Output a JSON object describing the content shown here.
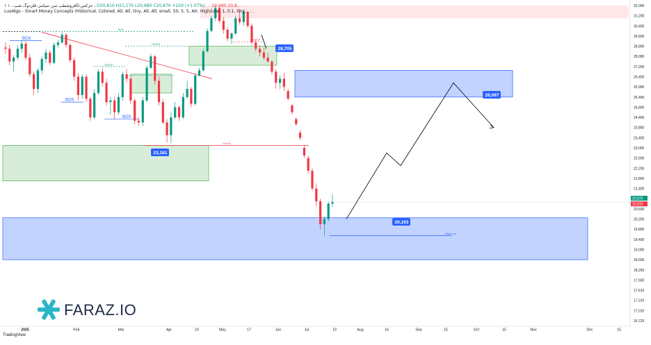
{
  "header": {
    "line1_prefix": "۱ فروشطپ سن سپامی فلزدوگ شپ ، ۱D،جزکس ،",
    "line1_values": "O20,810  H21,170  L20,680  C20,870  +220 (+1.07%)",
    "line2": "LuxAlgo - Smart Money Concepts (Historical, Colored, All, All, tiny, All, All, small, 50, 5, 5, Atr, High/Low, 1, 0.1, tiny, . . .",
    "inline_values": "20,680  20,8..."
  },
  "brand": {
    "name": "FARAZ.IO",
    "tradingview": "TradingView"
  },
  "colors": {
    "up": "#089981",
    "down": "#f23645",
    "demand_zone": "rgba(76,175,80,0.22)",
    "supply_zone": "rgba(41,98,255,0.28)",
    "premium_zone": "rgba(242,54,69,0.12)",
    "label_blue": "#2962ff"
  },
  "chart_data": {
    "type": "candlestick",
    "title": "",
    "xlabel": "",
    "ylabel": "",
    "ylim": [
      16720,
      32000
    ],
    "grid": false,
    "y_ticks": [
      32000,
      31200,
      30400,
      29600,
      28800,
      28000,
      27200,
      26400,
      25900,
      25400,
      24800,
      24400,
      23800,
      23400,
      23000,
      22600,
      22200,
      21800,
      21400,
      21000,
      20600,
      20200,
      19800,
      19400,
      19000,
      18600,
      18250,
      17930,
      17610,
      17310,
      17010,
      16720
    ],
    "y_tick_labels": [
      "32,000",
      "31,200",
      "30,400",
      "29,600",
      "28,800",
      "28,000",
      "27,200",
      "26,400",
      "25,900",
      "25,400",
      "24,800",
      "24,400",
      "23,800",
      "23,400",
      "23,000",
      "22,600",
      "22,200",
      "21,800",
      "21,400",
      "21,000",
      "20,600",
      "20,200",
      "19,800",
      "19,400",
      "19,000",
      "18,600",
      "18,250",
      "17,930",
      "17,610",
      "17,310",
      "17,010",
      "16,720"
    ],
    "x_ticks": [
      "2025",
      "Feb",
      "Mar",
      "Apr",
      "19",
      "May",
      "17",
      "Jun",
      "Jul",
      "19",
      "Aug",
      "16",
      "Sep",
      "15",
      "Oct",
      "15",
      "Nov",
      "Dec",
      "15"
    ],
    "current_price_tags": [
      "20,870",
      "20,810"
    ],
    "candles": [
      [
        28700,
        29100,
        28200,
        28600
      ],
      [
        28600,
        28900,
        27300,
        27600
      ],
      [
        27600,
        28100,
        26800,
        27900
      ],
      [
        27900,
        28900,
        27700,
        28600
      ],
      [
        28600,
        29300,
        28300,
        29000
      ],
      [
        29000,
        29200,
        27700,
        27900
      ],
      [
        27900,
        28200,
        26400,
        26600
      ],
      [
        26600,
        26800,
        25500,
        25800
      ],
      [
        25800,
        27100,
        25600,
        26900
      ],
      [
        26900,
        28000,
        26600,
        27800
      ],
      [
        27800,
        28600,
        27500,
        28300
      ],
      [
        28300,
        28500,
        27300,
        27500
      ],
      [
        27500,
        29100,
        27400,
        28900
      ],
      [
        28900,
        29300,
        28700,
        29100
      ],
      [
        29100,
        29900,
        29000,
        29700
      ],
      [
        29700,
        29800,
        28700,
        28900
      ],
      [
        28900,
        29000,
        27500,
        27700
      ],
      [
        27700,
        27900,
        26200,
        26400
      ],
      [
        26400,
        26700,
        25200,
        25500
      ],
      [
        25500,
        26600,
        25300,
        26400
      ],
      [
        26400,
        26600,
        25100,
        25300
      ],
      [
        25300,
        25400,
        24200,
        24400
      ],
      [
        24400,
        25800,
        24300,
        25600
      ],
      [
        25600,
        27000,
        25500,
        26800
      ],
      [
        26800,
        27100,
        25900,
        26100
      ],
      [
        26100,
        26300,
        24900,
        25100
      ],
      [
        25100,
        25400,
        24500,
        25200
      ],
      [
        25200,
        25400,
        24300,
        24600
      ],
      [
        24600,
        25600,
        24500,
        25400
      ],
      [
        25400,
        26800,
        25200,
        26600
      ],
      [
        26600,
        27000,
        26100,
        26300
      ],
      [
        26300,
        26500,
        25000,
        25200
      ],
      [
        25200,
        25300,
        24000,
        24200
      ],
      [
        24200,
        24400,
        23900,
        24100
      ],
      [
        24100,
        25400,
        23900,
        25200
      ],
      [
        25200,
        27300,
        25100,
        27100
      ],
      [
        27100,
        28200,
        27000,
        28000
      ],
      [
        28000,
        28100,
        26000,
        26200
      ],
      [
        26200,
        26400,
        24900,
        25100
      ],
      [
        25100,
        25300,
        24000,
        24100
      ],
      [
        24100,
        24300,
        23200,
        23500
      ],
      [
        23500,
        24600,
        23181,
        24400
      ],
      [
        24400,
        25100,
        24300,
        24800
      ],
      [
        24800,
        24900,
        24200,
        24400
      ],
      [
        24400,
        25600,
        24300,
        25400
      ],
      [
        25400,
        26200,
        25300,
        25800
      ],
      [
        25800,
        25900,
        24800,
        25000
      ],
      [
        25000,
        26600,
        24900,
        26500
      ],
      [
        26500,
        27100,
        26400,
        26900
      ],
      [
        26900,
        28600,
        26800,
        28400
      ],
      [
        28400,
        30200,
        28300,
        30000
      ],
      [
        30000,
        31200,
        29900,
        31000
      ],
      [
        31000,
        32000,
        30800,
        31800
      ],
      [
        31800,
        31900,
        30600,
        30800
      ],
      [
        30800,
        31100,
        29800,
        30100
      ],
      [
        30100,
        30300,
        29200,
        29400
      ],
      [
        29400,
        29900,
        29000,
        29800
      ],
      [
        29800,
        31200,
        29700,
        31000
      ],
      [
        31000,
        31700,
        30500,
        30700
      ],
      [
        30700,
        31700,
        30400,
        31500
      ],
      [
        31500,
        31600,
        30200,
        30400
      ],
      [
        30400,
        30600,
        28900,
        29100
      ],
      [
        29100,
        29300,
        28400,
        28600
      ],
      [
        28600,
        28900,
        28000,
        28300
      ],
      [
        28300,
        28705,
        27700,
        27900
      ],
      [
        27900,
        28300,
        27500,
        27600
      ],
      [
        27600,
        27700,
        26600,
        26800
      ],
      [
        26800,
        27000,
        25800,
        26100
      ],
      [
        26100,
        26500,
        25800,
        26300
      ],
      [
        26300,
        26700,
        25700,
        25900
      ],
      [
        25700,
        25800,
        25200,
        25300
      ],
      [
        24900,
        25000,
        24500,
        24600
      ],
      [
        24300,
        24400,
        23900,
        24000
      ],
      [
        23600,
        23700,
        23300,
        23400
      ],
      [
        23000,
        23100,
        22600,
        22700
      ],
      [
        22600,
        22700,
        22000,
        22100
      ],
      [
        22100,
        22200,
        21300,
        21400
      ],
      [
        21400,
        21600,
        20700,
        20900
      ],
      [
        20900,
        21000,
        19800,
        20000
      ],
      [
        20000,
        20300,
        19550,
        20200
      ],
      [
        20200,
        20900,
        20100,
        20810
      ],
      [
        20810,
        21170,
        20680,
        20870
      ]
    ],
    "zones": [
      {
        "kind": "demand",
        "top": 28800,
        "bottom": 27300,
        "label": ""
      },
      {
        "kind": "demand",
        "top": 26600,
        "bottom": 25600,
        "label": ""
      },
      {
        "kind": "demand",
        "top": 23100,
        "bottom": 21700,
        "label": ""
      },
      {
        "kind": "supply",
        "top": 26900,
        "bottom": 25400,
        "label": ""
      },
      {
        "kind": "supply",
        "top": 20250,
        "bottom": 18600,
        "label": ""
      },
      {
        "kind": "premium",
        "top": 32000,
        "bottom": 31000,
        "label": ""
      }
    ],
    "structure_labels": [
      "BOS",
      "BOS",
      "BOS",
      "CHoCH",
      "CHoCH",
      "CHoCH",
      "CHoCH"
    ],
    "price_labels": [
      "28,705",
      "23,181",
      "26,097",
      "20,163"
    ],
    "projection": [
      20200,
      22800,
      22300,
      26097,
      23800
    ],
    "annotations": [
      "Weak Low"
    ]
  }
}
